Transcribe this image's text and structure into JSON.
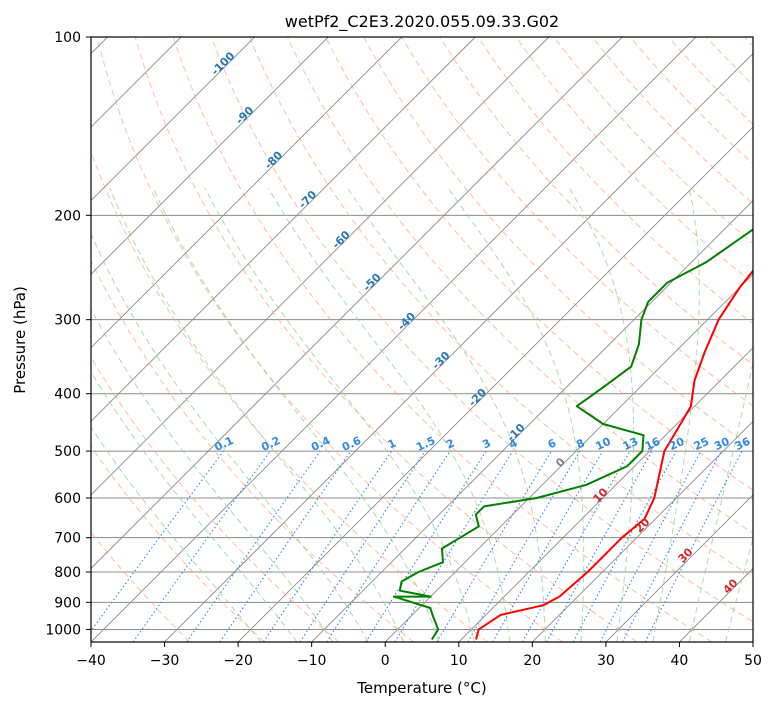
{
  "chart_data": {
    "type": "line",
    "title": "wetPf2_C2E3.2020.055.09.33.G02",
    "xlabel": "Temperature (°C)",
    "ylabel": "Pressure (hPa)",
    "xlim": [
      -40,
      50
    ],
    "ylim": [
      1050,
      100
    ],
    "y_scale": "log",
    "grid": true,
    "x_ticks": [
      -40,
      -30,
      -20,
      -10,
      0,
      10,
      20,
      30,
      40,
      50
    ],
    "y_ticks": [
      100,
      200,
      300,
      400,
      500,
      600,
      700,
      800,
      900,
      1000
    ],
    "skew": "skew-T",
    "series": [
      {
        "color": "#ff0000",
        "x": [
          12,
          11,
          12,
          16.5,
          17.5,
          18,
          18,
          18,
          18.5,
          17,
          12,
          10.5,
          9.5,
          6.5,
          4,
          1.5,
          0,
          -1,
          -2,
          -2,
          0,
          5,
          9,
          14,
          19.5
        ],
        "y": [
          1040,
          1000,
          945,
          910,
          880,
          800,
          750,
          700,
          650,
          600,
          500,
          450,
          420,
          380,
          340,
          300,
          265,
          230,
          205,
          180,
          165,
          150,
          130,
          115,
          100
        ]
      },
      {
        "color": "#008000",
        "x": [
          6,
          5.5,
          3,
          1.5,
          -5,
          0,
          -5,
          -6,
          -5,
          -3,
          -5,
          -4,
          -3,
          -5,
          -5,
          1,
          6,
          9,
          9,
          7,
          0,
          -6,
          -5,
          -4,
          -6,
          -9,
          -10.5,
          -10.5,
          -8,
          -6,
          -5,
          -6,
          -5,
          -4,
          -2
        ],
        "y": [
          1040,
          1000,
          950,
          920,
          880,
          880,
          860,
          830,
          800,
          770,
          730,
          700,
          670,
          640,
          620,
          600,
          570,
          530,
          500,
          470,
          450,
          420,
          390,
          360,
          330,
          300,
          280,
          260,
          240,
          210,
          180,
          160,
          140,
          120,
          100
        ]
      }
    ],
    "dry_adiabat_labels": [
      "-100",
      "-90",
      "-80",
      "-70",
      "-60",
      "-50",
      "-40",
      "-30",
      "-20",
      "-10"
    ],
    "mixing_ratio_labels": [
      "0.1",
      "0.2",
      "0.4",
      "0.6",
      "1",
      "1.5",
      "2",
      "3",
      "4",
      "6",
      "8",
      "10",
      "13",
      "16",
      "20",
      "25",
      "30",
      "36"
    ],
    "moist_adiabat_labels": [
      "0",
      "10",
      "20",
      "30",
      "40"
    ],
    "colors": {
      "temperature": "#ff0000",
      "dewpoint": "#008000",
      "dry_adiabat": "#ff9a7a",
      "moist_adiabat": "#8fcf8f",
      "mixing_ratio": "#2e8ce6",
      "isotherm": "#8c8c8c",
      "dry_adiabat_label": "#2878b5",
      "mixing_ratio_label": "#2e8ce6",
      "moist_label_zero": "#808080",
      "moist_label": "#d62728"
    }
  }
}
